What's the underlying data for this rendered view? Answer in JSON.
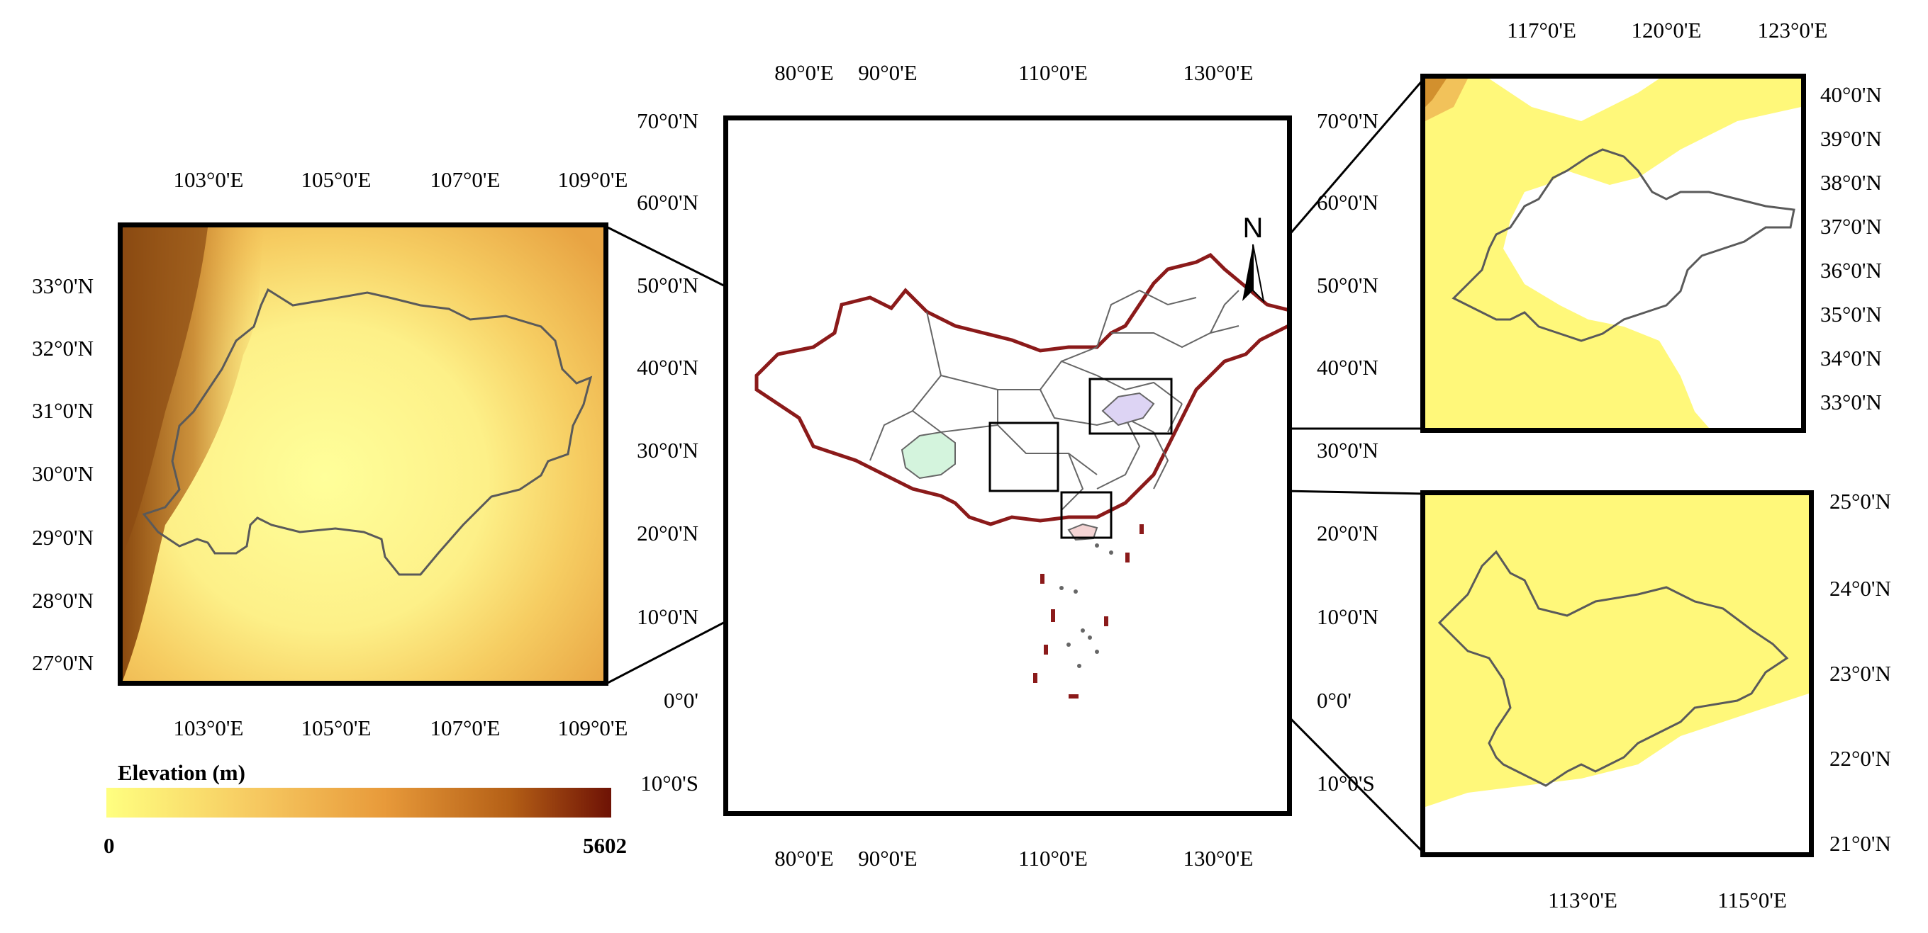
{
  "legend": {
    "title": "Elevation (m)",
    "min": "0",
    "max": "5602",
    "colors": [
      "#ffff80",
      "#f6c860",
      "#e89a3a",
      "#b45f16",
      "#6e1205"
    ]
  },
  "left_panel": {
    "top_ticks": [
      "103°0'E",
      "105°0'E",
      "107°0'E",
      "109°0'E"
    ],
    "bottom_ticks": [
      "103°0'E",
      "105°0'E",
      "107°0'E",
      "109°0'E"
    ],
    "left_ticks": [
      "33°0'N",
      "32°0'N",
      "31°0'N",
      "30°0'N",
      "29°0'N",
      "28°0'N",
      "27°0'N"
    ]
  },
  "center_panel": {
    "top_ticks": [
      "80°0'E",
      "90°0'E",
      "110°0'E",
      "130°0'E"
    ],
    "bottom_ticks": [
      "80°0'E",
      "90°0'E",
      "110°0'E",
      "130°0'E"
    ],
    "left_ticks": [
      "70°0'N",
      "60°0'N",
      "50°0'N",
      "40°0'N",
      "30°0'N",
      "20°0'N",
      "10°0'N",
      "0°0'",
      "10°0'S"
    ],
    "right_ticks": [
      "70°0'N",
      "60°0'N",
      "50°0'N",
      "40°0'N",
      "30°0'N",
      "20°0'N",
      "10°0'N",
      "0°0'",
      "10°0'S"
    ],
    "north_label": "N"
  },
  "top_right_panel": {
    "top_ticks": [
      "117°0'E",
      "120°0'E",
      "123°0'E"
    ],
    "right_ticks": [
      "40°0'N",
      "39°0'N",
      "38°0'N",
      "37°0'N",
      "36°0'N",
      "35°0'N",
      "34°0'N",
      "33°0'N"
    ]
  },
  "bottom_right_panel": {
    "right_ticks": [
      "25°0'N",
      "24°0'N",
      "23°0'N",
      "22°0'N",
      "21°0'N"
    ],
    "bottom_ticks": [
      "113°0'E",
      "115°0'E"
    ]
  },
  "colors": {
    "boundary": "#8b1a1a",
    "province": "#666666",
    "sichuan_fill": "#d4f4dd",
    "shandong_fill": "#ddd4f4",
    "guangdong_fill": "#f4d4d4",
    "region_outline": "#5a5a5a"
  }
}
